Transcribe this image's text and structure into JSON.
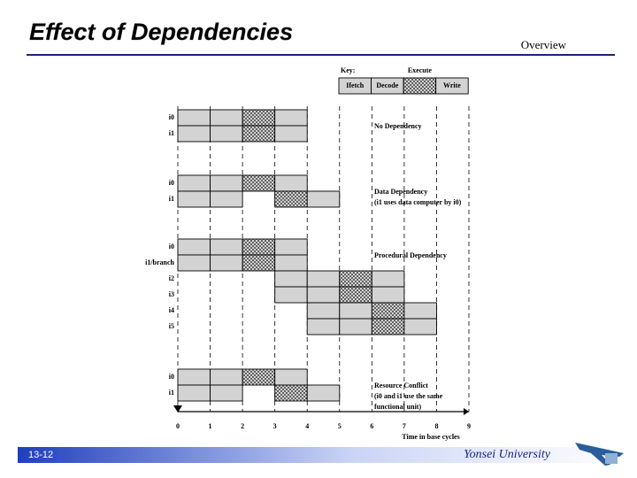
{
  "header": {
    "title": "Effect of Dependencies",
    "section": "Overview"
  },
  "key": {
    "label": "Key:",
    "stages": [
      "Ifetch",
      "Decode",
      "Execute",
      "Write"
    ]
  },
  "diagram": {
    "groups": [
      {
        "annotation": [
          "No Dependency"
        ],
        "rows": [
          {
            "label": "i0",
            "stages": [
              0,
              1,
              2,
              3
            ]
          },
          {
            "label": "i1",
            "stages": [
              0,
              1,
              2,
              3
            ]
          }
        ]
      },
      {
        "annotation": [
          "Data Dependency",
          "(i1 uses data computer by i0)"
        ],
        "rows": [
          {
            "label": "i0",
            "stages": [
              0,
              1,
              2,
              3
            ]
          },
          {
            "label": "i1",
            "stages": [
              0,
              1,
              3,
              4
            ]
          }
        ]
      },
      {
        "annotation": [
          "Procedural Dependency"
        ],
        "rows": [
          {
            "label": "i0",
            "stages": [
              0,
              1,
              2,
              3
            ]
          },
          {
            "label": "i1/branch",
            "stages": [
              0,
              1,
              2,
              3
            ]
          },
          {
            "label": "i2",
            "stages": [
              3,
              4,
              5,
              6
            ]
          },
          {
            "label": "i3",
            "stages": [
              3,
              4,
              5,
              6
            ]
          },
          {
            "label": "i4",
            "stages": [
              4,
              5,
              6,
              7
            ]
          },
          {
            "label": "i5",
            "stages": [
              4,
              5,
              6,
              7
            ]
          }
        ]
      },
      {
        "annotation": [
          "Resource Conflict",
          "(i0 and i1 use the same",
          "functional unit)"
        ],
        "rows": [
          {
            "label": "i0",
            "stages": [
              0,
              1,
              2,
              3
            ]
          },
          {
            "label": "i1",
            "stages": [
              0,
              1,
              3,
              4
            ]
          }
        ]
      }
    ],
    "xticks": [
      0,
      1,
      2,
      3,
      4,
      5,
      6,
      7,
      8,
      9
    ],
    "xlabel": "Time in base cycles"
  },
  "footer": {
    "page": "13-12",
    "org": "Yonsei University"
  }
}
